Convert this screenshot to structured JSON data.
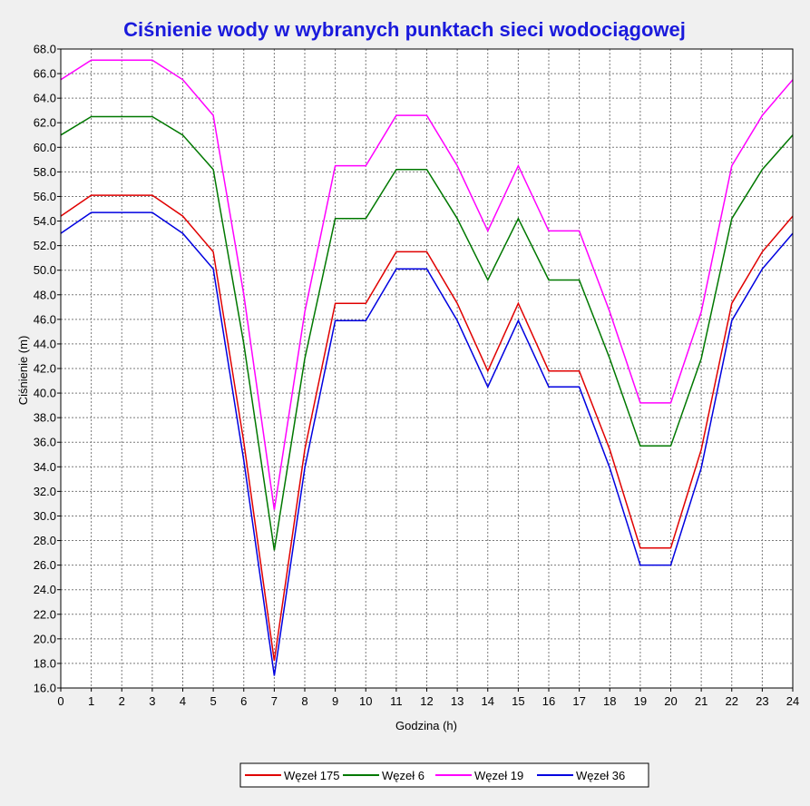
{
  "chart_data": {
    "type": "line",
    "title": "Ciśnienie wody w wybranych punktach sieci wodociągowej",
    "xlabel": "Godzina (h)",
    "ylabel": "Ciśnienie (m)",
    "xlim": [
      0,
      24
    ],
    "ylim": [
      16,
      68
    ],
    "x_ticks": [
      "0",
      "1",
      "2",
      "3",
      "4",
      "5",
      "6",
      "7",
      "8",
      "9",
      "10",
      "11",
      "12",
      "13",
      "14",
      "15",
      "16",
      "17",
      "18",
      "19",
      "20",
      "21",
      "22",
      "23",
      "24"
    ],
    "y_ticks": [
      "16.0",
      "18.0",
      "20.0",
      "22.0",
      "24.0",
      "26.0",
      "28.0",
      "30.0",
      "32.0",
      "34.0",
      "36.0",
      "38.0",
      "40.0",
      "42.0",
      "44.0",
      "46.0",
      "48.0",
      "50.0",
      "52.0",
      "54.0",
      "56.0",
      "58.0",
      "60.0",
      "62.0",
      "64.0",
      "66.0",
      "68.0"
    ],
    "grid": true,
    "legend_position": "bottom",
    "x": [
      0,
      1,
      2,
      3,
      4,
      5,
      6,
      7,
      8,
      9,
      10,
      11,
      12,
      13,
      14,
      15,
      16,
      17,
      18,
      19,
      20,
      21,
      22,
      23,
      24
    ],
    "series": [
      {
        "name": "Węzeł 175",
        "color": "#e00000",
        "values": [
          54.4,
          56.1,
          56.1,
          56.1,
          54.4,
          51.5,
          36.0,
          18.2,
          35.4,
          47.3,
          47.3,
          51.5,
          51.5,
          47.3,
          41.8,
          47.3,
          41.8,
          41.8,
          35.4,
          27.4,
          27.4,
          35.4,
          47.3,
          51.5,
          54.4
        ]
      },
      {
        "name": "Węzeł 6",
        "color": "#007800",
        "values": [
          61.0,
          62.5,
          62.5,
          62.5,
          61.0,
          58.2,
          44.0,
          27.2,
          42.8,
          54.2,
          54.2,
          58.2,
          58.2,
          54.2,
          49.2,
          54.2,
          49.2,
          49.2,
          42.8,
          35.7,
          35.7,
          42.8,
          54.2,
          58.2,
          61.0
        ]
      },
      {
        "name": "Węzeł 19",
        "color": "#ff00ff",
        "values": [
          65.5,
          67.1,
          67.1,
          67.1,
          65.5,
          62.6,
          48.0,
          30.5,
          46.6,
          58.5,
          58.5,
          62.6,
          62.6,
          58.5,
          53.2,
          58.5,
          53.2,
          53.2,
          46.6,
          39.2,
          39.2,
          46.6,
          58.5,
          62.6,
          65.5
        ]
      },
      {
        "name": "Węzeł 36",
        "color": "#0000e0",
        "values": [
          53.0,
          54.7,
          54.7,
          54.7,
          53.0,
          50.1,
          34.5,
          17.0,
          33.9,
          45.9,
          45.9,
          50.1,
          50.1,
          45.9,
          40.5,
          45.9,
          40.5,
          40.5,
          33.9,
          26.0,
          26.0,
          33.9,
          45.9,
          50.1,
          53.0
        ]
      }
    ]
  }
}
